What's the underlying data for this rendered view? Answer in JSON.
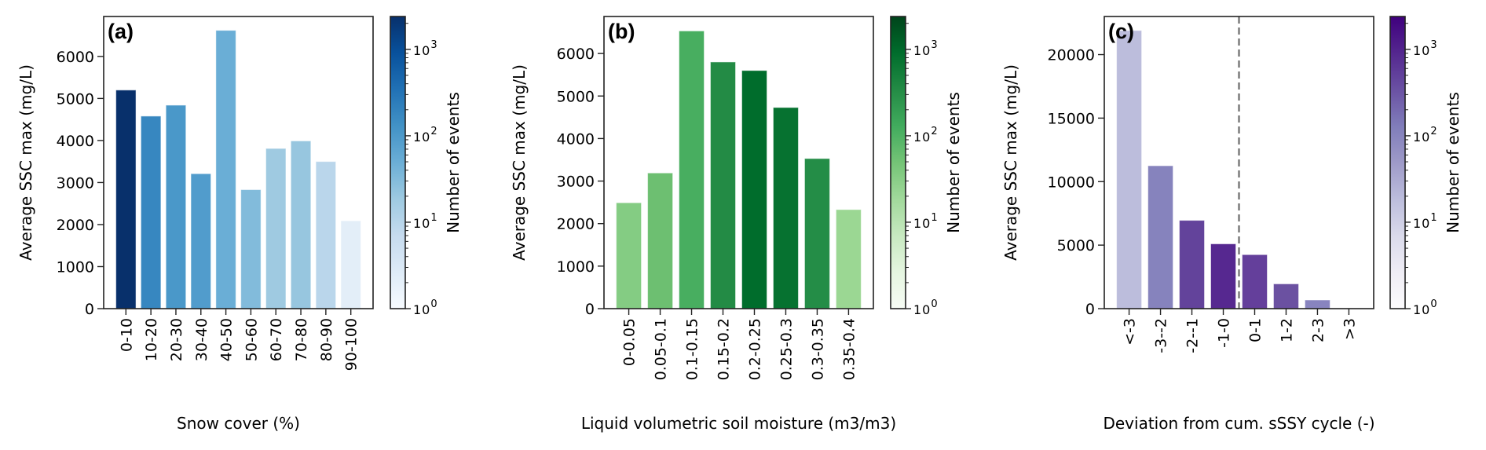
{
  "chart_data": [
    {
      "type": "bar",
      "panel_label": "(a)",
      "xlabel": "Snow cover (%)",
      "ylabel": "Average SSC max (mg/L)",
      "categories": [
        "0-10",
        "10-20",
        "20-30",
        "30-40",
        "40-50",
        "50-60",
        "60-70",
        "70-80",
        "80-90",
        "90-100"
      ],
      "values": [
        5200,
        4580,
        4840,
        3210,
        6620,
        2830,
        3810,
        3990,
        3500,
        2090
      ],
      "bar_colors": [
        "#08306b",
        "#3787c0",
        "#4a98c9",
        "#519ccc",
        "#6aaed6",
        "#82bbdb",
        "#9fcae1",
        "#97c6df",
        "#bad6eb",
        "#e3eef8"
      ],
      "ylim": [
        0,
        6950
      ],
      "yticks": [
        0,
        1000,
        2000,
        3000,
        4000,
        5000,
        6000
      ],
      "ytick_labels": [
        "0",
        "1000",
        "2000",
        "3000",
        "4000",
        "5000",
        "6000"
      ],
      "colorbar": {
        "label": "Number of events",
        "colormap": "Blues",
        "scale": "log",
        "range": [
          1,
          2400
        ],
        "stops": [
          "#f7fbff",
          "#deebf7",
          "#c6dbef",
          "#9ecae1",
          "#6baed6",
          "#4292c6",
          "#2171b5",
          "#08519c",
          "#08306b"
        ],
        "ticks": [
          {
            "value": 1,
            "base": "10",
            "exp": "0"
          },
          {
            "value": 10,
            "base": "10",
            "exp": "1"
          },
          {
            "value": 100,
            "base": "10",
            "exp": "2"
          },
          {
            "value": 1000,
            "base": "10",
            "exp": "3"
          }
        ]
      }
    },
    {
      "type": "bar",
      "panel_label": "(b)",
      "xlabel": "Liquid volumetric soil moisture (m3/m3)",
      "ylabel": "Average SSC max (mg/L)",
      "categories": [
        "0-0.05",
        "0.05-0.1",
        "0.1-0.15",
        "0.15-0.2",
        "0.2-0.25",
        "0.25-0.3",
        "0.3-0.35",
        "0.35-0.4"
      ],
      "values": [
        2490,
        3190,
        6530,
        5800,
        5600,
        4730,
        3530,
        2330
      ],
      "bar_colors": [
        "#84cc83",
        "#6dbf71",
        "#48ae60",
        "#238b45",
        "#006d2c",
        "#067230",
        "#248d47",
        "#9bd793"
      ],
      "ylim": [
        0,
        6870
      ],
      "yticks": [
        0,
        1000,
        2000,
        3000,
        4000,
        5000,
        6000
      ],
      "ytick_labels": [
        "0",
        "1000",
        "2000",
        "3000",
        "4000",
        "5000",
        "6000"
      ],
      "colorbar": {
        "label": "Number of events",
        "colormap": "Greens",
        "scale": "log",
        "range": [
          1,
          2400
        ],
        "stops": [
          "#f7fcf5",
          "#e5f5e0",
          "#c7e9c0",
          "#a1d99b",
          "#74c476",
          "#41ab5d",
          "#238b45",
          "#006d2c",
          "#00441b"
        ],
        "ticks": [
          {
            "value": 1,
            "base": "10",
            "exp": "0"
          },
          {
            "value": 10,
            "base": "10",
            "exp": "1"
          },
          {
            "value": 100,
            "base": "10",
            "exp": "2"
          },
          {
            "value": 1000,
            "base": "10",
            "exp": "3"
          }
        ]
      }
    },
    {
      "type": "bar",
      "panel_label": "(c)",
      "xlabel": "Deviation from cum. sSSY cycle (-)",
      "ylabel": "Average SSC max (mg/L)",
      "categories": [
        "<-3",
        "-3--2",
        "-2--1",
        "-1-0",
        "0-1",
        "1-2",
        "2-3",
        ">3"
      ],
      "values": [
        21900,
        11250,
        6950,
        5100,
        4250,
        1950,
        680,
        0
      ],
      "bar_colors": [
        "#bcbddc",
        "#8683bd",
        "#63439b",
        "#562890",
        "#643f9b",
        "#6b51a1",
        "#8884bf",
        "#ffffff"
      ],
      "ylim": [
        0,
        23000
      ],
      "yticks": [
        0,
        5000,
        10000,
        15000,
        20000
      ],
      "ytick_labels": [
        "0",
        "5000",
        "10000",
        "15000",
        "20000"
      ],
      "vline": {
        "x": 3.5,
        "style": "dashed",
        "color": "#808080"
      },
      "colorbar": {
        "label": "Number of events",
        "colormap": "Purples",
        "scale": "log",
        "range": [
          1,
          2400
        ],
        "stops": [
          "#fcfbfd",
          "#efedf5",
          "#dadaeb",
          "#bcbddc",
          "#9e9ac8",
          "#807dba",
          "#6a51a3",
          "#54278f",
          "#3f007d"
        ],
        "ticks": [
          {
            "value": 1,
            "base": "10",
            "exp": "0"
          },
          {
            "value": 10,
            "base": "10",
            "exp": "1"
          },
          {
            "value": 100,
            "base": "10",
            "exp": "2"
          },
          {
            "value": 1000,
            "base": "10",
            "exp": "3"
          }
        ]
      }
    }
  ]
}
